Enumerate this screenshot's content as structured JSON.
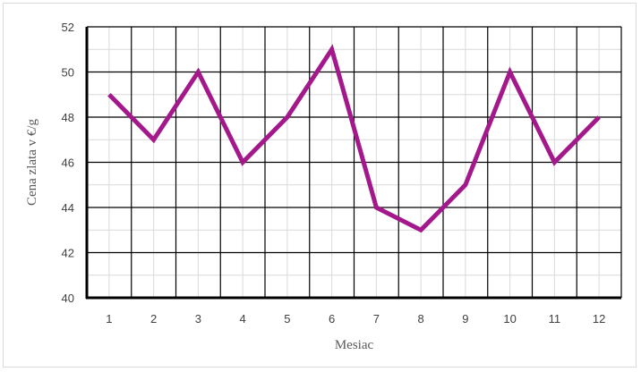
{
  "chart_data": {
    "type": "line",
    "title": "",
    "xlabel": "Mesiac",
    "ylabel": "Cena zlata v €/g",
    "categories": [
      "1",
      "2",
      "3",
      "4",
      "5",
      "6",
      "7",
      "8",
      "9",
      "10",
      "11",
      "12"
    ],
    "series": [
      {
        "values": [
          49,
          47,
          50,
          46,
          48,
          51,
          44,
          43,
          45,
          50,
          46,
          48
        ],
        "color": "#a3198b"
      }
    ],
    "ylim": [
      40,
      52
    ],
    "y_ticks": [
      "40",
      "42",
      "44",
      "46",
      "48",
      "50",
      "52"
    ],
    "y_minor_step": 1,
    "x_minor_per_category": 2,
    "grid": true,
    "legend": "none"
  }
}
